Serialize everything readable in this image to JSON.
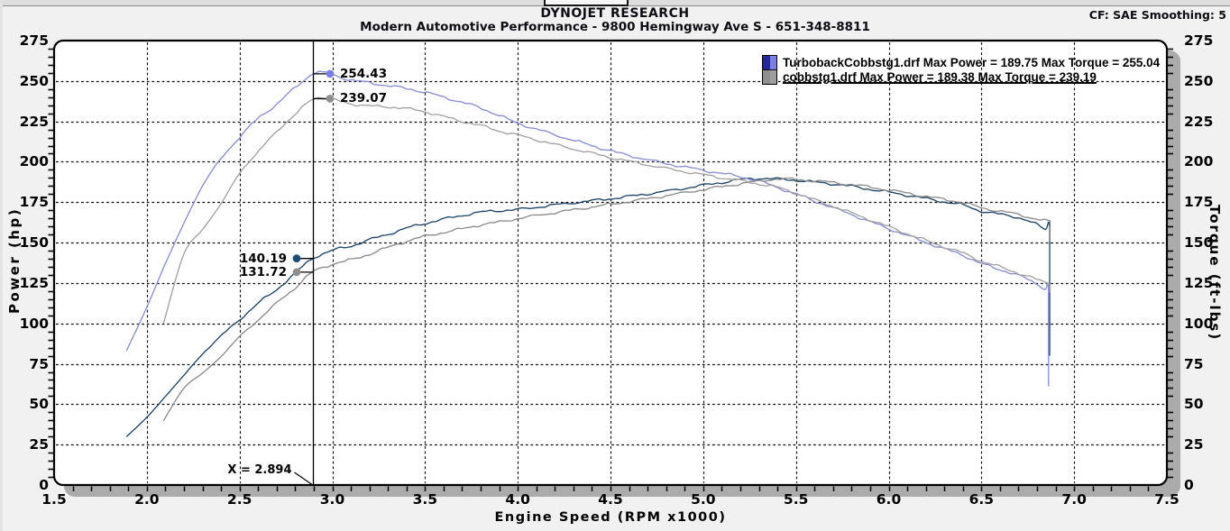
{
  "header": {
    "brand": "DYNOJET RESEARCH",
    "subtitle": "Modern Automotive Performance - 9800 Hemingway Ave S - 651-348-8811",
    "correction": "CF: SAE  Smoothing: 5"
  },
  "chart_data": {
    "type": "line",
    "xlabel": "Engine Speed (RPM x1000)",
    "ylabel_left": "Power (hp)",
    "ylabel_right": "Torque (ft-lbs)",
    "xlim": [
      1.5,
      7.5
    ],
    "ylim": [
      0,
      275
    ],
    "x_ticks": [
      "1.5",
      "2.0",
      "2.5",
      "3.0",
      "3.5",
      "4.0",
      "4.5",
      "5.0",
      "5.5",
      "6.0",
      "6.5",
      "7.0",
      "7.5"
    ],
    "y_ticks": [
      "0",
      "25",
      "50",
      "75",
      "100",
      "125",
      "150",
      "175",
      "200",
      "225",
      "250",
      "275"
    ],
    "grid": "dashed",
    "cursor": {
      "x": 2.894,
      "label": "X = 2.894",
      "readouts": [
        {
          "label": "254.43",
          "value": 254.43,
          "side": "right",
          "color": "#7c80e6"
        },
        {
          "label": "239.07",
          "value": 239.07,
          "side": "right",
          "color": "#8f8f8f"
        },
        {
          "label": "140.19",
          "value": 140.19,
          "side": "left",
          "color": "#1e4d78"
        },
        {
          "label": "131.72",
          "value": 131.72,
          "side": "left",
          "color": "#8f8f8f"
        }
      ]
    },
    "legend": [
      {
        "text": "TurbobackCobbstg1.drf Max Power = 189.75 Max Torque = 255.04",
        "swatch": [
          "#26269a",
          "#7c80e6"
        ],
        "underline": false
      },
      {
        "text": "cobbstg1.drf Max Power = 189.38 Max Torque = 239.19",
        "swatch": [
          "#8f8f8f",
          "#9f9f9f"
        ],
        "underline": true
      }
    ],
    "series": [
      {
        "name": "TurbobackCobbstg1.drf Power",
        "unit": "hp",
        "color": "#1f4468",
        "max": 189.75,
        "drop_to": 80,
        "points": [
          [
            1.89,
            29.9
          ],
          [
            2.0,
            41.9
          ],
          [
            2.1,
            54.8
          ],
          [
            2.2,
            67.9
          ],
          [
            2.3,
            81.0
          ],
          [
            2.4,
            92.3
          ],
          [
            2.5,
            102.3
          ],
          [
            2.6,
            112.4
          ],
          [
            2.7,
            121.0
          ],
          [
            2.8,
            131.1
          ],
          [
            2.894,
            140.19
          ],
          [
            3.0,
            145.1
          ],
          [
            3.1,
            147.9
          ],
          [
            3.2,
            151.7
          ],
          [
            3.3,
            155.2
          ],
          [
            3.4,
            158.9
          ],
          [
            3.5,
            161.9
          ],
          [
            3.6,
            164.5
          ],
          [
            3.7,
            166.8
          ],
          [
            3.8,
            168.8
          ],
          [
            3.9,
            169.8
          ],
          [
            4.0,
            170.5
          ],
          [
            4.2,
            173.3
          ],
          [
            4.4,
            175.9
          ],
          [
            4.5,
            177.2
          ],
          [
            4.6,
            178.6
          ],
          [
            4.8,
            181.8
          ],
          [
            5.0,
            185.5
          ],
          [
            5.1,
            187.2
          ],
          [
            5.2,
            189.0
          ],
          [
            5.3,
            189.75
          ],
          [
            5.4,
            189.3
          ],
          [
            5.5,
            188.6
          ],
          [
            5.6,
            187.4
          ],
          [
            5.7,
            186.3
          ],
          [
            5.8,
            184.8
          ],
          [
            5.9,
            183.0
          ],
          [
            6.0,
            181.2
          ],
          [
            6.1,
            179.3
          ],
          [
            6.2,
            177.3
          ],
          [
            6.3,
            175.2
          ],
          [
            6.4,
            173.2
          ],
          [
            6.5,
            169.5
          ],
          [
            6.6,
            167.5
          ],
          [
            6.7,
            165.5
          ],
          [
            6.8,
            161.0
          ],
          [
            6.845,
            158.5
          ],
          [
            6.862,
            163.0
          ],
          [
            6.868,
            160.0
          ]
        ]
      },
      {
        "name": "TurbobackCobbstg1.drf Torque",
        "unit": "ft-lbs",
        "color": "#8a8ed2",
        "max": 255.04,
        "drop_to": 61,
        "points": [
          [
            1.89,
            83
          ],
          [
            2.0,
            110
          ],
          [
            2.1,
            137
          ],
          [
            2.2,
            162
          ],
          [
            2.3,
            185
          ],
          [
            2.4,
            202
          ],
          [
            2.5,
            215
          ],
          [
            2.6,
            227
          ],
          [
            2.7,
            235.5
          ],
          [
            2.8,
            246
          ],
          [
            2.894,
            254.43
          ],
          [
            2.95,
            255.04
          ],
          [
            3.0,
            254.0
          ],
          [
            3.1,
            250.5
          ],
          [
            3.2,
            249.0
          ],
          [
            3.3,
            247.0
          ],
          [
            3.4,
            245.4
          ],
          [
            3.5,
            243.0
          ],
          [
            3.6,
            240.0
          ],
          [
            3.7,
            236.8
          ],
          [
            3.8,
            233.3
          ],
          [
            3.9,
            228.7
          ],
          [
            4.0,
            223.9
          ],
          [
            4.2,
            216.7
          ],
          [
            4.4,
            210.0
          ],
          [
            4.5,
            206.8
          ],
          [
            4.6,
            203.9
          ],
          [
            4.8,
            198.9
          ],
          [
            5.0,
            194.8
          ],
          [
            5.1,
            192.8
          ],
          [
            5.2,
            190.8
          ],
          [
            5.3,
            188.1
          ],
          [
            5.4,
            184.1
          ],
          [
            5.5,
            180.1
          ],
          [
            5.6,
            175.7
          ],
          [
            5.7,
            171.6
          ],
          [
            5.8,
            167.4
          ],
          [
            5.9,
            162.9
          ],
          [
            6.0,
            158.6
          ],
          [
            6.1,
            154.4
          ],
          [
            6.2,
            150.2
          ],
          [
            6.3,
            146.1
          ],
          [
            6.4,
            142.2
          ],
          [
            6.5,
            137.0
          ],
          [
            6.6,
            133.3
          ],
          [
            6.7,
            129.7
          ],
          [
            6.8,
            124.4
          ],
          [
            6.845,
            121.6
          ],
          [
            6.856,
            124.8
          ],
          [
            6.862,
            122.4
          ]
        ]
      },
      {
        "name": "cobbstg1.drf Power",
        "unit": "hp",
        "color": "#8c8c8c",
        "max": 189.38,
        "drop_to": 151,
        "points": [
          [
            2.09,
            39.8
          ],
          [
            2.2,
            59.9
          ],
          [
            2.3,
            69.2
          ],
          [
            2.4,
            79.5
          ],
          [
            2.5,
            91.9
          ],
          [
            2.6,
            102.0
          ],
          [
            2.7,
            112.6
          ],
          [
            2.8,
            122.1
          ],
          [
            2.894,
            131.72
          ],
          [
            3.0,
            136.6
          ],
          [
            3.1,
            139.3
          ],
          [
            3.2,
            142.9
          ],
          [
            3.3,
            147.0
          ],
          [
            3.4,
            150.8
          ],
          [
            3.5,
            153.9
          ],
          [
            3.6,
            156.3
          ],
          [
            3.7,
            158.5
          ],
          [
            3.8,
            161.0
          ],
          [
            3.9,
            162.7
          ],
          [
            4.0,
            164.9
          ],
          [
            4.2,
            168.5
          ],
          [
            4.4,
            172.0
          ],
          [
            4.5,
            173.7
          ],
          [
            4.6,
            175.4
          ],
          [
            4.8,
            179.0
          ],
          [
            5.0,
            182.8
          ],
          [
            5.1,
            184.6
          ],
          [
            5.2,
            186.4
          ],
          [
            5.3,
            188.0
          ],
          [
            5.4,
            189.38
          ],
          [
            5.5,
            189.0
          ],
          [
            5.6,
            188.2
          ],
          [
            5.7,
            187.2
          ],
          [
            5.8,
            185.9
          ],
          [
            5.9,
            184.3
          ],
          [
            6.0,
            182.5
          ],
          [
            6.1,
            180.6
          ],
          [
            6.2,
            178.6
          ],
          [
            6.3,
            176.7
          ],
          [
            6.4,
            174.8
          ],
          [
            6.5,
            171.5
          ],
          [
            6.6,
            169.5
          ],
          [
            6.7,
            167.3
          ],
          [
            6.8,
            164.5
          ],
          [
            6.87,
            163.0
          ]
        ]
      },
      {
        "name": "cobbstg1.drf Torque",
        "unit": "ft-lbs",
        "color": "#a2a2a2",
        "max": 239.19,
        "drop_to": 119,
        "points": [
          [
            2.09,
            100
          ],
          [
            2.2,
            143
          ],
          [
            2.3,
            158
          ],
          [
            2.4,
            174
          ],
          [
            2.5,
            193
          ],
          [
            2.6,
            206
          ],
          [
            2.7,
            219
          ],
          [
            2.8,
            229
          ],
          [
            2.894,
            239.07
          ],
          [
            2.97,
            239.19
          ],
          [
            3.0,
            238.5
          ],
          [
            3.1,
            236.0
          ],
          [
            3.2,
            234.5
          ],
          [
            3.3,
            234.0
          ],
          [
            3.4,
            232.9
          ],
          [
            3.5,
            231.0
          ],
          [
            3.6,
            228.0
          ],
          [
            3.7,
            225.0
          ],
          [
            3.8,
            222.4
          ],
          [
            3.9,
            219.1
          ],
          [
            4.0,
            216.5
          ],
          [
            4.2,
            210.7
          ],
          [
            4.4,
            205.3
          ],
          [
            4.5,
            202.7
          ],
          [
            4.6,
            200.3
          ],
          [
            4.8,
            195.9
          ],
          [
            5.0,
            192.0
          ],
          [
            5.1,
            190.1
          ],
          [
            5.2,
            188.3
          ],
          [
            5.3,
            186.3
          ],
          [
            5.4,
            184.2
          ],
          [
            5.5,
            180.5
          ],
          [
            5.6,
            176.5
          ],
          [
            5.7,
            172.5
          ],
          [
            5.8,
            168.3
          ],
          [
            5.9,
            164.1
          ],
          [
            6.0,
            159.8
          ],
          [
            6.1,
            155.5
          ],
          [
            6.2,
            151.3
          ],
          [
            6.3,
            147.3
          ],
          [
            6.4,
            143.5
          ],
          [
            6.5,
            138.6
          ],
          [
            6.6,
            134.9
          ],
          [
            6.7,
            131.1
          ],
          [
            6.8,
            127.1
          ],
          [
            6.87,
            124.6
          ]
        ]
      }
    ]
  }
}
